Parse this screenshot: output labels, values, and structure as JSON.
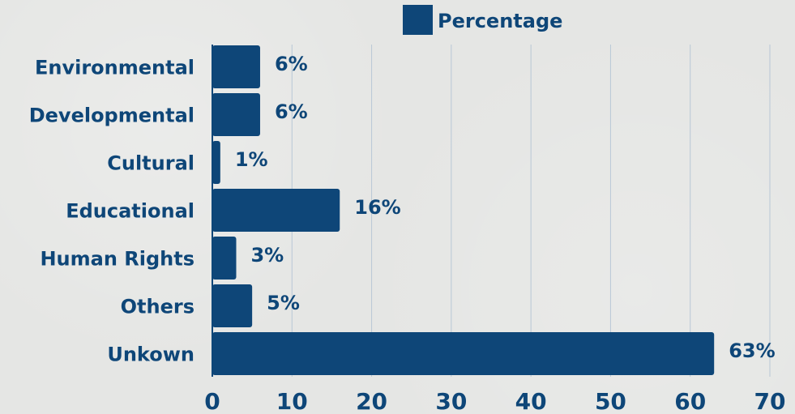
{
  "chart_data": {
    "type": "bar",
    "orientation": "horizontal",
    "legend": {
      "position": "top-center"
    },
    "categories": [
      "Environmental",
      "Developmental",
      "Cultural",
      "Educational",
      "Human Rights",
      "Others",
      "Unkown"
    ],
    "series": [
      {
        "name": "Percentage",
        "values": [
          6,
          6,
          1,
          16,
          3,
          5,
          63
        ],
        "data_labels": [
          "6%",
          "6%",
          "1%",
          "16%",
          "3%",
          "5%",
          "63%"
        ],
        "color": "#0e4678"
      }
    ],
    "x_axis": {
      "range": [
        0,
        70
      ],
      "ticks": [
        0,
        10,
        20,
        30,
        40,
        50,
        60,
        70
      ],
      "tick_labels": [
        "0",
        "10",
        "20",
        "30",
        "40",
        "50",
        "60",
        "70"
      ]
    },
    "grid": {
      "vertical": true,
      "horizontal": false
    }
  },
  "colors": {
    "bar": "#0e4678",
    "text": "#0e4678",
    "grid": "#b8c7d6",
    "axis": "#0e4678"
  }
}
